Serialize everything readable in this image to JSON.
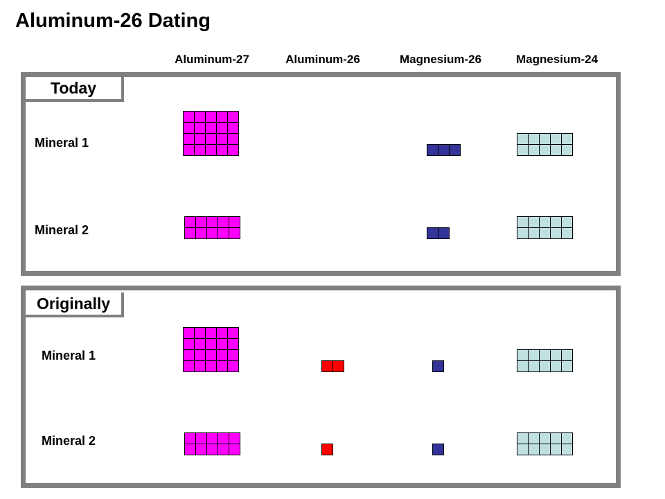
{
  "title": "Aluminum-26 Dating",
  "columns": [
    "Aluminum-27",
    "Aluminum-26",
    "Magnesium-26",
    "Magnesium-24"
  ],
  "colors": {
    "aluminum27": "#ff00ff",
    "aluminum26": "#ff0000",
    "magnesium26": "#333399",
    "magnesium24": "#c0e0e0",
    "frame": "#808080"
  },
  "panels": [
    {
      "label": "Today",
      "minerals": [
        {
          "label": "Mineral 1",
          "aluminum27": 20,
          "aluminum26": 0,
          "magnesium26": 3,
          "magnesium24": 10
        },
        {
          "label": "Mineral 2",
          "aluminum27": 10,
          "aluminum26": 0,
          "magnesium26": 2,
          "magnesium24": 10
        }
      ]
    },
    {
      "label": "Originally",
      "minerals": [
        {
          "label": "Mineral 1",
          "aluminum27": 20,
          "aluminum26": 2,
          "magnesium26": 1,
          "magnesium24": 10
        },
        {
          "label": "Mineral 2",
          "aluminum27": 10,
          "aluminum26": 1,
          "magnesium26": 1,
          "magnesium24": 10
        }
      ]
    }
  ]
}
